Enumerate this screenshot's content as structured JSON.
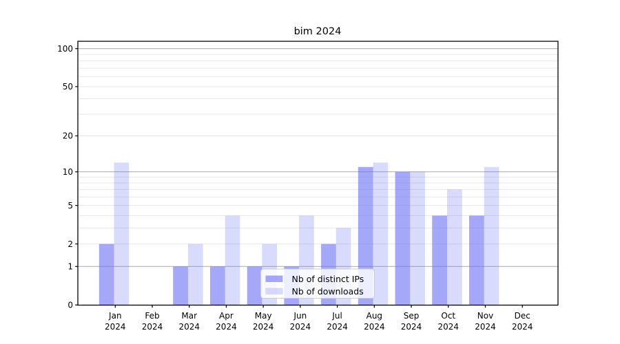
{
  "title": "bim 2024",
  "chart_data": {
    "type": "bar",
    "title": "bim 2024",
    "categories": [
      "Jan 2024",
      "Feb 2024",
      "Mar 2024",
      "Apr 2024",
      "May 2024",
      "Jun 2024",
      "Jul 2024",
      "Aug 2024",
      "Sep 2024",
      "Oct 2024",
      "Nov 2024",
      "Dec 2024"
    ],
    "series": [
      {
        "name": "Nb of distinct IPs",
        "color": "rgb(105,110,245)",
        "opacity": 0.6,
        "values": [
          2,
          0,
          1,
          1,
          1,
          1,
          2,
          11,
          10,
          4,
          4,
          0
        ]
      },
      {
        "name": "Nb of downloads",
        "color": "rgb(105,110,245)",
        "opacity": 0.25,
        "values": [
          12,
          0,
          2,
          4,
          2,
          4,
          3,
          12,
          10,
          7,
          11,
          0
        ]
      }
    ],
    "xlabel": "",
    "ylabel": "",
    "yscale": "log1p",
    "ylim": [
      0,
      115
    ],
    "y_tick_values": [
      0,
      1,
      2,
      5,
      10,
      20,
      50,
      100
    ],
    "y_tick_labels": [
      "0",
      "1",
      "2",
      "5",
      "10",
      "20",
      "50",
      "100"
    ],
    "major_gridlines": [
      1,
      10,
      100
    ],
    "minor_gridlines": [
      2,
      3,
      4,
      5,
      6,
      7,
      8,
      9,
      20,
      30,
      40,
      50,
      60,
      70,
      80,
      90
    ],
    "grid": true,
    "legend_position": "lower center",
    "colors": {
      "major_grid": "#b3b3b3",
      "minor_grid": "#e7e7e7",
      "axis_frame": "#000000",
      "legend_border": "#cccccc",
      "legend_background": "rgba(255,255,255,0.8)",
      "background": "#ffffff"
    }
  }
}
